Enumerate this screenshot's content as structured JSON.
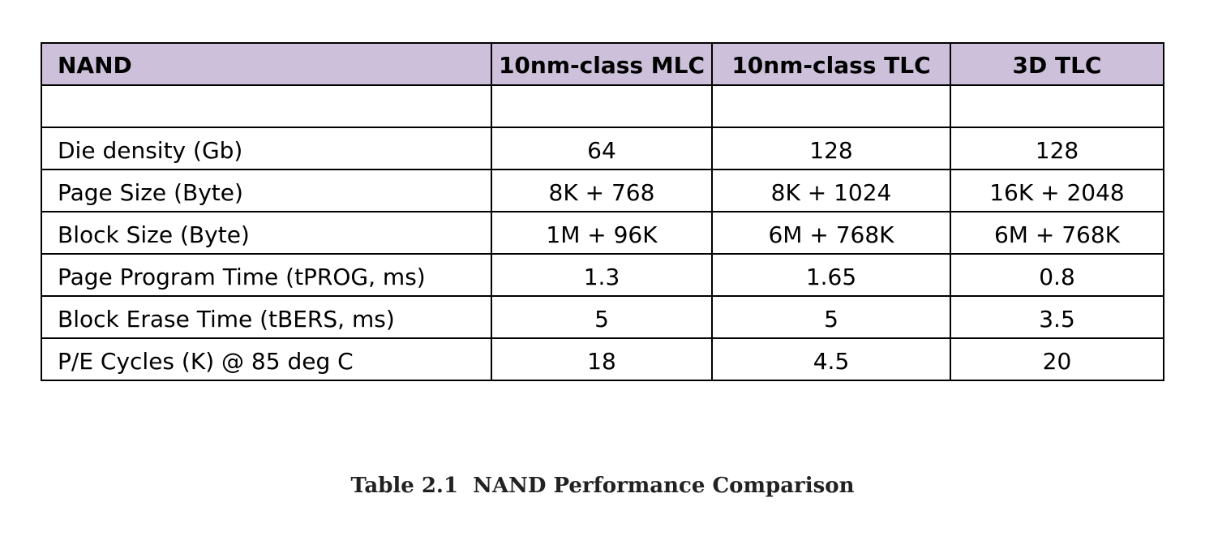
{
  "table": {
    "header": {
      "label": "NAND",
      "columns": [
        "10nm-class MLC",
        "10nm-class TLC",
        "3D TLC"
      ]
    },
    "rows": [
      {
        "label": "",
        "values": [
          "",
          "",
          ""
        ]
      },
      {
        "label": "Die density (Gb)",
        "values": [
          "64",
          "128",
          "128"
        ]
      },
      {
        "label": "Page Size (Byte)",
        "values": [
          "8K + 768",
          "8K + 1024",
          "16K + 2048"
        ]
      },
      {
        "label": "Block Size (Byte)",
        "values": [
          "1M + 96K",
          "6M + 768K",
          "6M + 768K"
        ]
      },
      {
        "label": "Page Program Time (tPROG, ms)",
        "values": [
          "1.3",
          "1.65",
          "0.8"
        ]
      },
      {
        "label": "Block Erase Time (tBERS, ms)",
        "values": [
          "5",
          "5",
          "3.5"
        ]
      },
      {
        "label": "P/E Cycles (K) @ 85 deg C",
        "values": [
          "18",
          "4.5",
          "20"
        ]
      }
    ],
    "header_color": "#ccc0da"
  },
  "caption": "Table 2.1  NAND Performance Comparison"
}
